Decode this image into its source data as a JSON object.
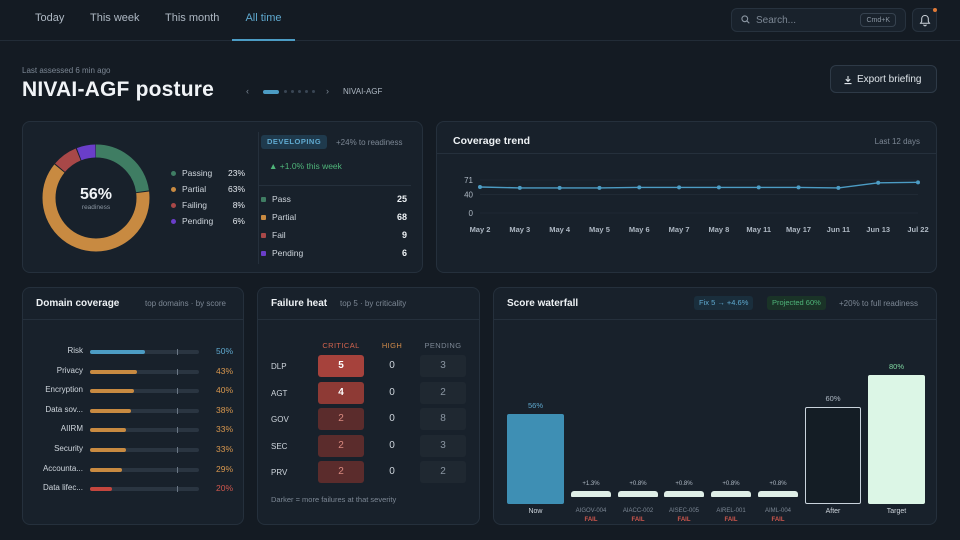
{
  "nav": {
    "tabs": [
      "Today",
      "This week",
      "This month",
      "All time"
    ],
    "active": "All time"
  },
  "search": {
    "placeholder": "Search...",
    "shortcut": "Cmd+K"
  },
  "header": {
    "last_assessed": "Last assessed 6 min ago",
    "title": "NIVAI-AGF posture",
    "pager_label": "NIVAI-AGF",
    "pager_prev": "‹",
    "pager_next": "›",
    "export_label": "Export briefing"
  },
  "posture": {
    "center_value": "56%",
    "center_label": "readiness",
    "legend": [
      {
        "label": "Passing",
        "value": "23%",
        "pct": 23,
        "color": "#3f7d63"
      },
      {
        "label": "Partial",
        "value": "63%",
        "pct": 63,
        "color": "#c88a41"
      },
      {
        "label": "Failing",
        "value": "8%",
        "pct": 8,
        "color": "#a84848"
      },
      {
        "label": "Pending",
        "value": "6%",
        "pct": 6,
        "color": "#6a3ec9"
      }
    ],
    "badge": "DEVELOPING",
    "to_readiness": "+24% to readiness",
    "weekly_change": "▲ +1.0% this week",
    "counts": [
      {
        "label": "Pass",
        "value": "25",
        "color": "#3f7d63"
      },
      {
        "label": "Partial",
        "value": "68",
        "color": "#c88a41"
      },
      {
        "label": "Fail",
        "value": "9",
        "color": "#a84848"
      },
      {
        "label": "Pending",
        "value": "6",
        "color": "#6a3ec9"
      }
    ]
  },
  "trend": {
    "title": "Coverage trend",
    "range": "Last 12 days"
  },
  "chart_data": {
    "type": "line",
    "x": [
      "May 2",
      "May 3",
      "May 4",
      "May 5",
      "May 6",
      "May 7",
      "May 8",
      "May 11",
      "May 17",
      "Jun 11",
      "Jun 13",
      "Jul 22"
    ],
    "values": [
      56,
      54,
      54,
      54,
      55,
      55,
      55,
      55,
      55,
      54,
      65,
      66
    ],
    "yticks": [
      "71",
      "40",
      "0"
    ],
    "ylim": [
      0,
      71
    ],
    "color": "#4c9cc4"
  },
  "domains": {
    "title": "Domain coverage",
    "subtitle": "top domains · by score",
    "rows": [
      {
        "label": "Risk",
        "value": "50%",
        "pct": 50,
        "color": "#4c9cc4"
      },
      {
        "label": "Privacy",
        "value": "43%",
        "pct": 43,
        "color": "#c88a41"
      },
      {
        "label": "Encryption",
        "value": "40%",
        "pct": 40,
        "color": "#c88a41"
      },
      {
        "label": "Data sov...",
        "value": "38%",
        "pct": 38,
        "color": "#c88a41"
      },
      {
        "label": "AIIRM",
        "value": "33%",
        "pct": 33,
        "color": "#c88a41"
      },
      {
        "label": "Security",
        "value": "33%",
        "pct": 33,
        "color": "#c88a41"
      },
      {
        "label": "Accounta...",
        "value": "29%",
        "pct": 29,
        "color": "#c88a41"
      },
      {
        "label": "Data lifec...",
        "value": "20%",
        "pct": 20,
        "color": "#c4463e"
      }
    ]
  },
  "heat": {
    "title": "Failure heat",
    "subtitle": "top 5 · by criticality",
    "columns": [
      "CRITICAL",
      "HIGH",
      "PENDING"
    ],
    "rows": [
      {
        "label": "DLP",
        "critical": "5",
        "high": "0",
        "pending": "3"
      },
      {
        "label": "AGT",
        "critical": "4",
        "high": "0",
        "pending": "2"
      },
      {
        "label": "GOV",
        "critical": "2",
        "high": "0",
        "pending": "8"
      },
      {
        "label": "SEC",
        "critical": "2",
        "high": "0",
        "pending": "3"
      },
      {
        "label": "PRV",
        "critical": "2",
        "high": "0",
        "pending": "2"
      }
    ],
    "footnote": "Darker = more failures at that severity"
  },
  "waterfall": {
    "title": "Score waterfall",
    "fix_pill": "Fix 5 → +4.6%",
    "projected_pill": "Projected 60%",
    "full_readiness": "+20% to full readiness",
    "bars": [
      {
        "label": "Now",
        "value": 56,
        "value_label": "56%",
        "kind": "now"
      },
      {
        "label": "AIGOV-004",
        "value": 1.3,
        "value_label": "+1.3%",
        "kind": "step",
        "status": "FAIL"
      },
      {
        "label": "AIACC-002",
        "value": 0.8,
        "value_label": "+0.8%",
        "kind": "step",
        "status": "FAIL"
      },
      {
        "label": "AISEC-005",
        "value": 0.8,
        "value_label": "+0.8%",
        "kind": "step",
        "status": "FAIL"
      },
      {
        "label": "AIREL-001",
        "value": 0.8,
        "value_label": "+0.8%",
        "kind": "step",
        "status": "FAIL"
      },
      {
        "label": "AIML-004",
        "value": 0.8,
        "value_label": "+0.8%",
        "kind": "step",
        "status": "FAIL"
      },
      {
        "label": "After",
        "value": 60,
        "value_label": "60%",
        "kind": "after"
      },
      {
        "label": "Target",
        "value": 80,
        "value_label": "80%",
        "kind": "target"
      }
    ]
  }
}
